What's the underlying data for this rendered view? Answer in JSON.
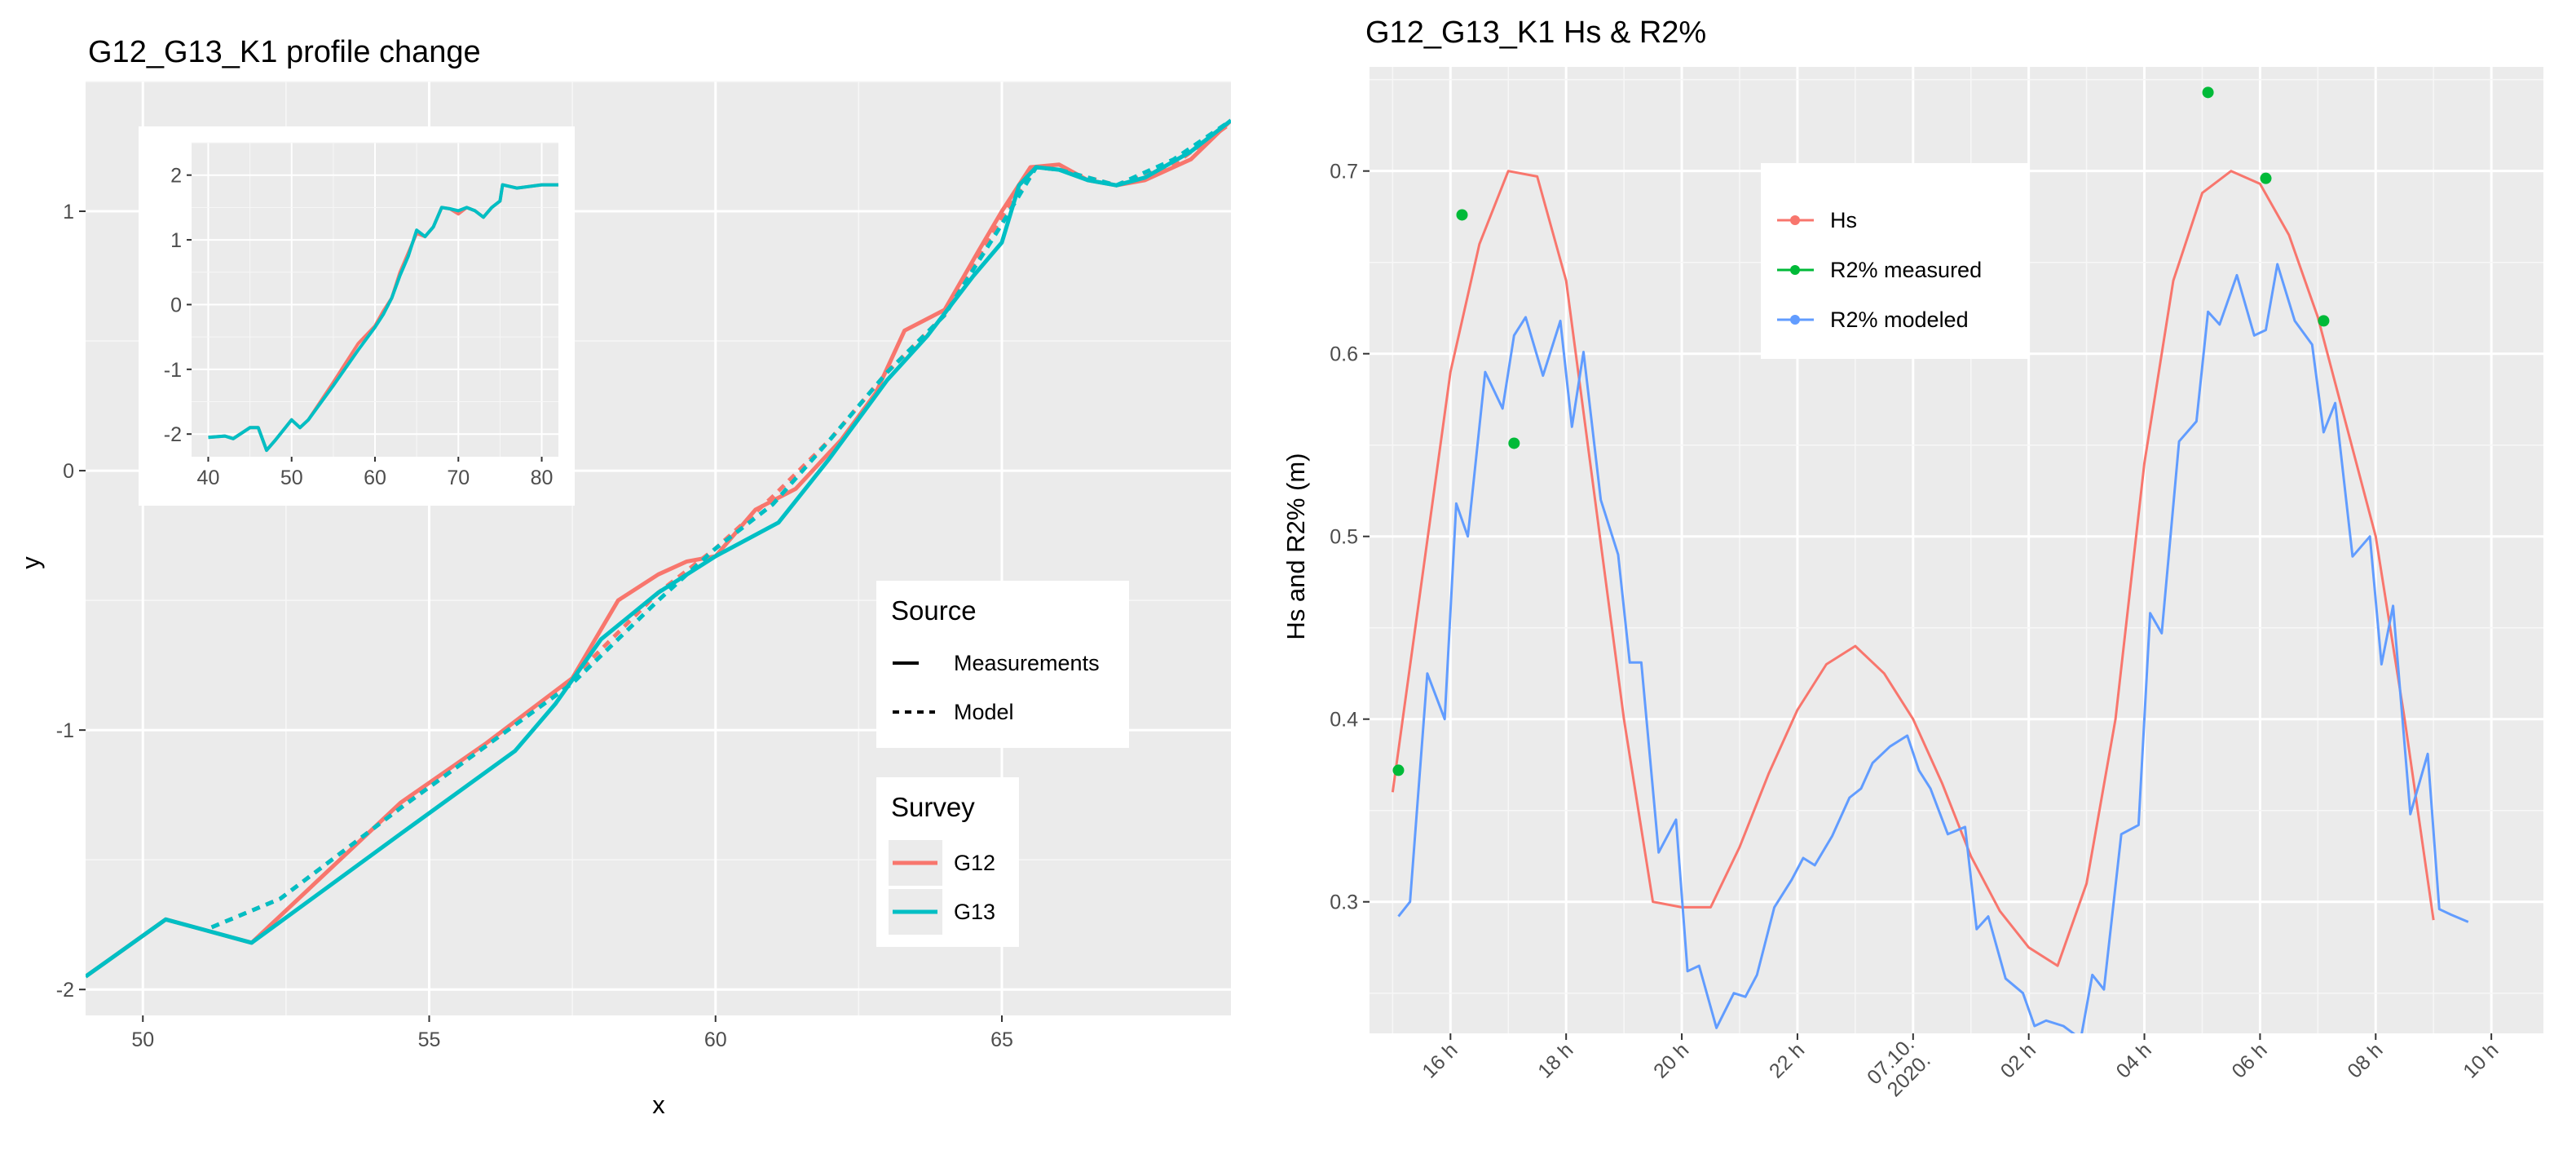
{
  "chart_data": [
    {
      "type": "line",
      "title": "G12_G13_K1 profile change",
      "xlabel": "x",
      "ylabel": "y",
      "xlim": [
        49,
        69
      ],
      "ylim": [
        -2.1,
        1.5
      ],
      "x_ticks": [
        50,
        55,
        60,
        65
      ],
      "y_ticks": [
        -2,
        -1,
        0,
        1
      ],
      "legend_source": {
        "title": "Source",
        "items": [
          {
            "label": "Measurements",
            "style": "solid"
          },
          {
            "label": "Model",
            "style": "dashed"
          }
        ]
      },
      "legend_survey": {
        "title": "Survey",
        "items": [
          {
            "label": "G12",
            "color": "#F8766D"
          },
          {
            "label": "G13",
            "color": "#00BFC4"
          }
        ]
      },
      "series": [
        {
          "name": "G12 Measurements",
          "color": "#F8766D",
          "style": "solid",
          "points": [
            [
              49,
              -1.95
            ],
            [
              50.4,
              -1.73
            ],
            [
              51.9,
              -1.82
            ],
            [
              54.5,
              -1.28
            ],
            [
              56,
              -1.05
            ],
            [
              57.5,
              -0.8
            ],
            [
              58.3,
              -0.5
            ],
            [
              59,
              -0.4
            ],
            [
              59.5,
              -0.35
            ],
            [
              60,
              -0.33
            ],
            [
              60.7,
              -0.15
            ],
            [
              61.4,
              -0.07
            ],
            [
              62.2,
              0.12
            ],
            [
              62.8,
              0.3
            ],
            [
              63.3,
              0.54
            ],
            [
              64,
              0.62
            ],
            [
              64.6,
              0.85
            ],
            [
              65,
              1.0
            ],
            [
              65.5,
              1.17
            ],
            [
              66,
              1.18
            ],
            [
              66.5,
              1.12
            ],
            [
              67,
              1.1
            ],
            [
              67.5,
              1.12
            ],
            [
              68.3,
              1.2
            ],
            [
              69,
              1.35
            ]
          ]
        },
        {
          "name": "G12 Model",
          "color": "#F8766D",
          "style": "dashed",
          "points": [
            [
              51.2,
              -1.76
            ],
            [
              52.4,
              -1.65
            ],
            [
              54.5,
              -1.3
            ],
            [
              56,
              -1.06
            ],
            [
              57.5,
              -0.8
            ],
            [
              59,
              -0.47
            ],
            [
              60,
              -0.3
            ],
            [
              61,
              -0.1
            ],
            [
              62,
              0.12
            ],
            [
              63,
              0.38
            ],
            [
              64,
              0.6
            ],
            [
              65,
              0.98
            ],
            [
              65.6,
              1.17
            ],
            [
              66,
              1.16
            ],
            [
              67,
              1.1
            ],
            [
              68,
              1.18
            ],
            [
              69,
              1.34
            ]
          ]
        },
        {
          "name": "G13 Measurements",
          "color": "#00BFC4",
          "style": "solid",
          "points": [
            [
              49,
              -1.95
            ],
            [
              50.4,
              -1.73
            ],
            [
              51.9,
              -1.82
            ],
            [
              54.5,
              -1.4
            ],
            [
              56.5,
              -1.08
            ],
            [
              57.2,
              -0.9
            ],
            [
              58,
              -0.65
            ],
            [
              59,
              -0.47
            ],
            [
              60,
              -0.33
            ],
            [
              61.1,
              -0.2
            ],
            [
              62,
              0.05
            ],
            [
              63,
              0.35
            ],
            [
              63.7,
              0.52
            ],
            [
              64.5,
              0.75
            ],
            [
              65,
              0.88
            ],
            [
              65.3,
              1.1
            ],
            [
              65.6,
              1.17
            ],
            [
              66,
              1.16
            ],
            [
              66.5,
              1.12
            ],
            [
              67,
              1.1
            ],
            [
              67.5,
              1.13
            ],
            [
              68.3,
              1.23
            ],
            [
              69,
              1.35
            ]
          ]
        },
        {
          "name": "G13 Model",
          "color": "#00BFC4",
          "style": "dashed",
          "points": [
            [
              51.2,
              -1.76
            ],
            [
              52.4,
              -1.65
            ],
            [
              54.5,
              -1.3
            ],
            [
              56,
              -1.06
            ],
            [
              57.5,
              -0.82
            ],
            [
              59,
              -0.5
            ],
            [
              60,
              -0.3
            ],
            [
              61,
              -0.13
            ],
            [
              62,
              0.12
            ],
            [
              63,
              0.38
            ],
            [
              64,
              0.6
            ],
            [
              65,
              0.95
            ],
            [
              65.6,
              1.17
            ],
            [
              66,
              1.16
            ],
            [
              67,
              1.1
            ],
            [
              68,
              1.2
            ],
            [
              69,
              1.35
            ]
          ]
        }
      ],
      "inset": {
        "xlim": [
          38,
          82
        ],
        "ylim": [
          -2.35,
          2.5
        ],
        "x_ticks": [
          40,
          50,
          60,
          70,
          80
        ],
        "y_ticks": [
          -2,
          -1,
          0,
          1,
          2
        ],
        "series": [
          {
            "name": "G12",
            "color": "#F8766D",
            "points": [
              [
                40,
                -2.05
              ],
              [
                42,
                -2.03
              ],
              [
                43,
                -2.07
              ],
              [
                45,
                -1.9
              ],
              [
                46,
                -1.9
              ],
              [
                47,
                -2.25
              ],
              [
                48,
                -2.1
              ],
              [
                50,
                -1.78
              ],
              [
                51,
                -1.9
              ],
              [
                52,
                -1.78
              ],
              [
                55,
                -1.2
              ],
              [
                58,
                -0.6
              ],
              [
                60,
                -0.33
              ],
              [
                61,
                -0.1
              ],
              [
                62,
                0.1
              ],
              [
                63,
                0.5
              ],
              [
                64,
                0.8
              ],
              [
                65,
                1.1
              ],
              [
                66,
                1.05
              ],
              [
                67,
                1.2
              ],
              [
                68,
                1.5
              ],
              [
                69,
                1.48
              ],
              [
                70,
                1.4
              ],
              [
                71,
                1.5
              ],
              [
                72,
                1.45
              ],
              [
                73,
                1.35
              ],
              [
                74,
                1.5
              ],
              [
                75,
                1.6
              ],
              [
                75.3,
                1.85
              ],
              [
                77,
                1.8
              ],
              [
                80,
                1.85
              ],
              [
                82,
                1.85
              ]
            ]
          },
          {
            "name": "G13",
            "color": "#00BFC4",
            "points": [
              [
                40,
                -2.05
              ],
              [
                42,
                -2.03
              ],
              [
                43,
                -2.07
              ],
              [
                45,
                -1.9
              ],
              [
                46,
                -1.9
              ],
              [
                47,
                -2.25
              ],
              [
                48,
                -2.1
              ],
              [
                50,
                -1.78
              ],
              [
                51,
                -1.9
              ],
              [
                52,
                -1.78
              ],
              [
                55,
                -1.25
              ],
              [
                58,
                -0.7
              ],
              [
                60,
                -0.35
              ],
              [
                61,
                -0.15
              ],
              [
                62,
                0.1
              ],
              [
                63,
                0.45
              ],
              [
                64,
                0.75
              ],
              [
                65,
                1.15
              ],
              [
                66,
                1.05
              ],
              [
                67,
                1.2
              ],
              [
                68,
                1.5
              ],
              [
                69,
                1.48
              ],
              [
                70,
                1.45
              ],
              [
                71,
                1.5
              ],
              [
                72,
                1.45
              ],
              [
                73,
                1.35
              ],
              [
                74,
                1.5
              ],
              [
                75,
                1.6
              ],
              [
                75.3,
                1.85
              ],
              [
                77,
                1.8
              ],
              [
                80,
                1.85
              ],
              [
                82,
                1.85
              ]
            ]
          }
        ]
      }
    },
    {
      "type": "line",
      "title": "G12_G13_K1 Hs & R2%",
      "xlabel": "",
      "ylabel": "Hs and R2% (m)",
      "xlim": [
        14.6,
        34.9
      ],
      "ylim": [
        0.228,
        0.757
      ],
      "x_ticks": [
        16,
        18,
        20,
        22,
        24,
        26,
        28,
        30,
        32,
        34
      ],
      "x_tick_labels": [
        "16 h",
        "18 h",
        "20 h",
        "22 h",
        "07.10.\n2020.",
        "02 h",
        "04 h",
        "06 h",
        "08 h",
        "10 h"
      ],
      "y_ticks": [
        0.3,
        0.4,
        0.5,
        0.6,
        0.7
      ],
      "y_tick_labels": [
        "0.3",
        "0.4",
        "0.5",
        "0.6",
        "0.7"
      ],
      "legend": [
        {
          "label": "Hs",
          "color": "#F8766D"
        },
        {
          "label": "R2% measured",
          "color": "#00BA38"
        },
        {
          "label": "R2% modeled",
          "color": "#619CFF"
        }
      ],
      "series": [
        {
          "name": "Hs",
          "color": "#F8766D",
          "kind": "line",
          "x": [
            15,
            16,
            16.5,
            17,
            17.5,
            18,
            18.5,
            19,
            19.5,
            20,
            20.5,
            21,
            21.5,
            22,
            22.5,
            23,
            23.5,
            24,
            24.5,
            25,
            25.5,
            26,
            26.5,
            27,
            27.5,
            28,
            28.5,
            29,
            29.5,
            30,
            30.5,
            31,
            31.5,
            32,
            32.5,
            33
          ],
          "y": [
            0.36,
            0.59,
            0.66,
            0.7,
            0.697,
            0.64,
            0.52,
            0.4,
            0.3,
            0.297,
            0.297,
            0.33,
            0.37,
            0.405,
            0.43,
            0.44,
            0.425,
            0.4,
            0.365,
            0.325,
            0.295,
            0.275,
            0.265,
            0.31,
            0.4,
            0.54,
            0.64,
            0.688,
            0.7,
            0.693,
            0.665,
            0.62,
            0.56,
            0.5,
            0.4,
            0.29
          ]
        },
        {
          "name": "R2% modeled",
          "color": "#619CFF",
          "kind": "line",
          "x": [
            15.1,
            15.3,
            15.6,
            15.9,
            16.1,
            16.3,
            16.6,
            16.9,
            17.1,
            17.3,
            17.6,
            17.9,
            18.1,
            18.3,
            18.6,
            18.9,
            19.1,
            19.3,
            19.6,
            19.9,
            20.1,
            20.3,
            20.6,
            20.9,
            21.1,
            21.3,
            21.6,
            21.9,
            22.1,
            22.3,
            22.6,
            22.9,
            23.1,
            23.3,
            23.6,
            23.9,
            24.1,
            24.3,
            24.6,
            24.9,
            25.1,
            25.3,
            25.6,
            25.9,
            26.1,
            26.3,
            26.6,
            26.9,
            27.1,
            27.3,
            27.6,
            27.9,
            28.1,
            28.3,
            28.6,
            28.9,
            29.1,
            29.3,
            29.6,
            29.9,
            30.1,
            30.3,
            30.6,
            30.9,
            31.1,
            31.3,
            31.6,
            31.9,
            32.1,
            32.3,
            32.6,
            32.9,
            33.1,
            33.3,
            33.6
          ],
          "y": [
            0.292,
            0.3,
            0.425,
            0.4,
            0.518,
            0.5,
            0.59,
            0.57,
            0.61,
            0.62,
            0.588,
            0.618,
            0.56,
            0.601,
            0.52,
            0.49,
            0.431,
            0.431,
            0.327,
            0.345,
            0.262,
            0.265,
            0.231,
            0.25,
            0.248,
            0.26,
            0.297,
            0.312,
            0.324,
            0.32,
            0.336,
            0.357,
            0.362,
            0.376,
            0.385,
            0.391,
            0.372,
            0.362,
            0.337,
            0.341,
            0.285,
            0.292,
            0.258,
            0.25,
            0.232,
            0.235,
            0.232,
            0.225,
            0.26,
            0.252,
            0.337,
            0.342,
            0.458,
            0.447,
            0.552,
            0.563,
            0.623,
            0.616,
            0.643,
            0.61,
            0.613,
            0.649,
            0.618,
            0.605,
            0.557,
            0.573,
            0.489,
            0.5,
            0.43,
            0.462,
            0.348,
            0.381,
            0.296,
            0.293,
            0.289
          ]
        },
        {
          "name": "R2% measured",
          "color": "#00BA38",
          "kind": "points",
          "x": [
            15.1,
            16.2,
            17.1,
            29.1,
            30.1,
            31.1
          ],
          "y": [
            0.372,
            0.676,
            0.551,
            0.743,
            0.696,
            0.618
          ]
        }
      ]
    }
  ]
}
